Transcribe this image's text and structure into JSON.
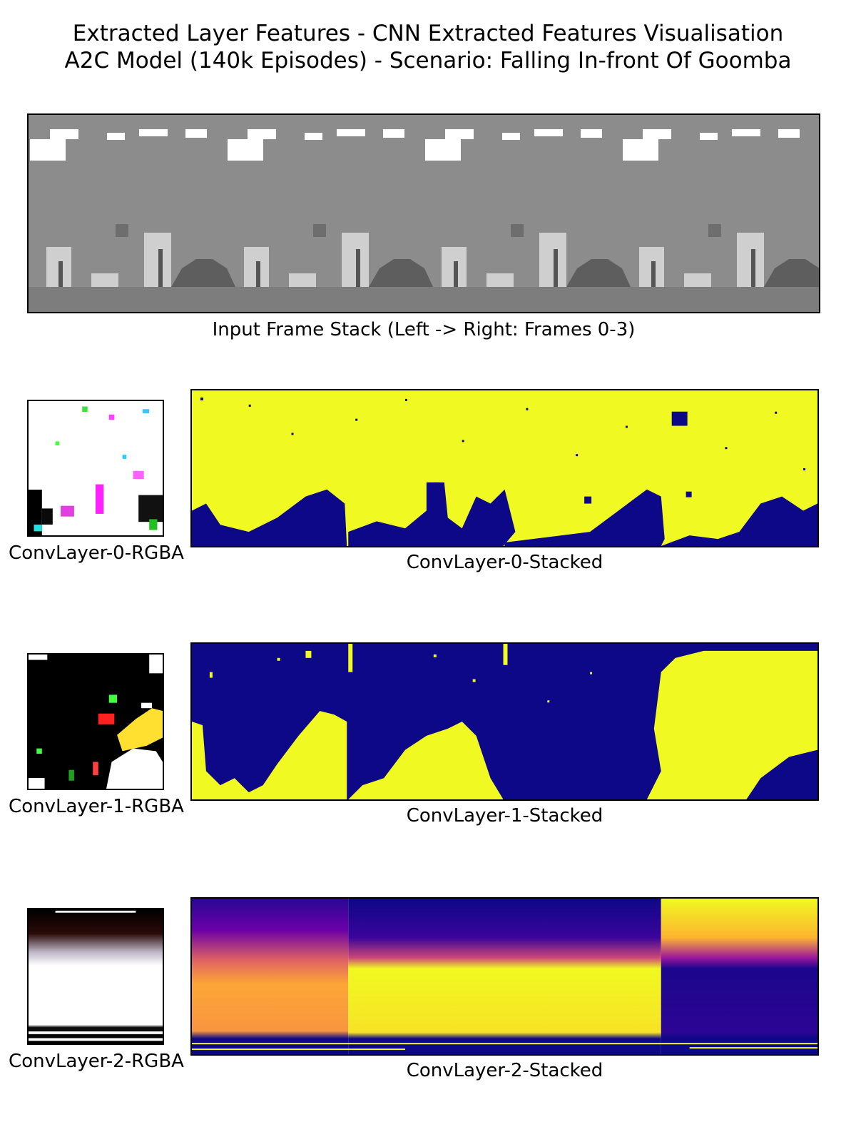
{
  "figure": {
    "title_line1": "Extracted Layer Features - CNN Extracted Features Visualisation",
    "title_line2": "A2C Model (140k Episodes) - Scenario: Falling In-front Of Goomba"
  },
  "input_panel": {
    "caption": "Input Frame Stack (Left -> Right: Frames 0-3)",
    "frames": 4
  },
  "layers": [
    {
      "rgba_caption": "ConvLayer-0-RGBA",
      "stacked_caption": "ConvLayer-0-Stacked",
      "colormap": [
        "#0d0887",
        "#f0f921"
      ]
    },
    {
      "rgba_caption": "ConvLayer-1-RGBA",
      "stacked_caption": "ConvLayer-1-Stacked",
      "colormap": [
        "#0d0887",
        "#f0f921"
      ]
    },
    {
      "rgba_caption": "ConvLayer-2-RGBA",
      "stacked_caption": "ConvLayer-2-Stacked",
      "colormap": [
        "#0d0887",
        "#f0f921"
      ]
    }
  ],
  "colors": {
    "background_gray": "#8c8c8c",
    "ground_gray": "#7d7d7d",
    "cloud_white": "#ffffff",
    "pipe_light": "#cfcfcf",
    "dark_gray": "#555555",
    "plasma_low": "#0d0887",
    "plasma_high": "#f0f921"
  }
}
